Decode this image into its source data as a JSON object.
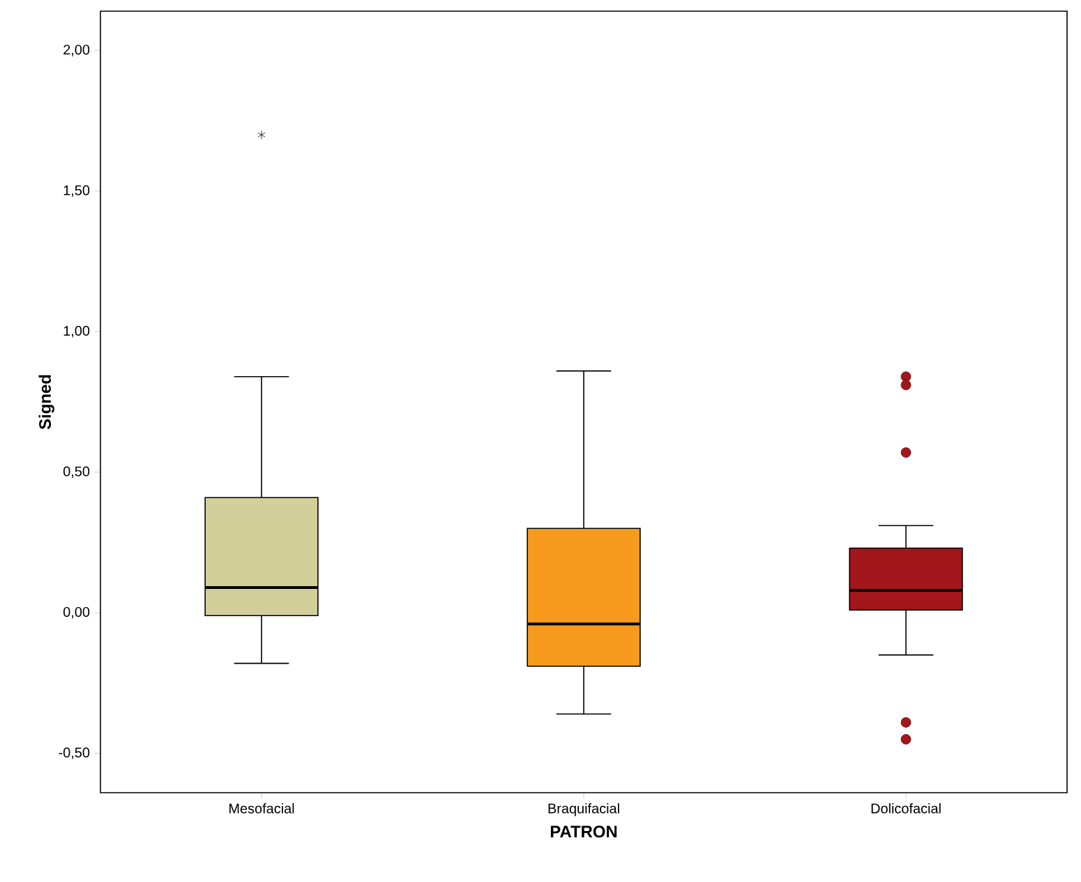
{
  "chart_data": {
    "type": "box",
    "xlabel": "PATRON",
    "ylabel": "Signed",
    "categories": [
      "Mesofacial",
      "Braquifacial",
      "Dolicofacial"
    ],
    "colors": [
      "#d3cf9b",
      "#f79b1f",
      "#a3161b"
    ],
    "boxes": [
      {
        "low": -0.18,
        "q1": -0.01,
        "median": 0.09,
        "q3": 0.41,
        "high": 0.84,
        "outliers": [
          1.7
        ]
      },
      {
        "low": -0.36,
        "q1": -0.19,
        "median": -0.04,
        "q3": 0.3,
        "high": 0.86
      },
      {
        "low": -0.15,
        "q1": 0.01,
        "median": 0.08,
        "q3": 0.23,
        "high": 0.31,
        "outliers": [
          0.84,
          0.81,
          0.57,
          -0.39,
          -0.45
        ]
      }
    ],
    "ylim": [
      -0.64,
      2.14
    ],
    "yticks": [
      {
        "value": -0.5,
        "label": "-0,50"
      },
      {
        "value": 0,
        "label": "0,00"
      },
      {
        "value": 0.5,
        "label": "0,50"
      },
      {
        "value": 1,
        "label": "1,00"
      },
      {
        "value": 1.5,
        "label": "1,50"
      },
      {
        "value": 2,
        "label": "2,00"
      }
    ]
  }
}
